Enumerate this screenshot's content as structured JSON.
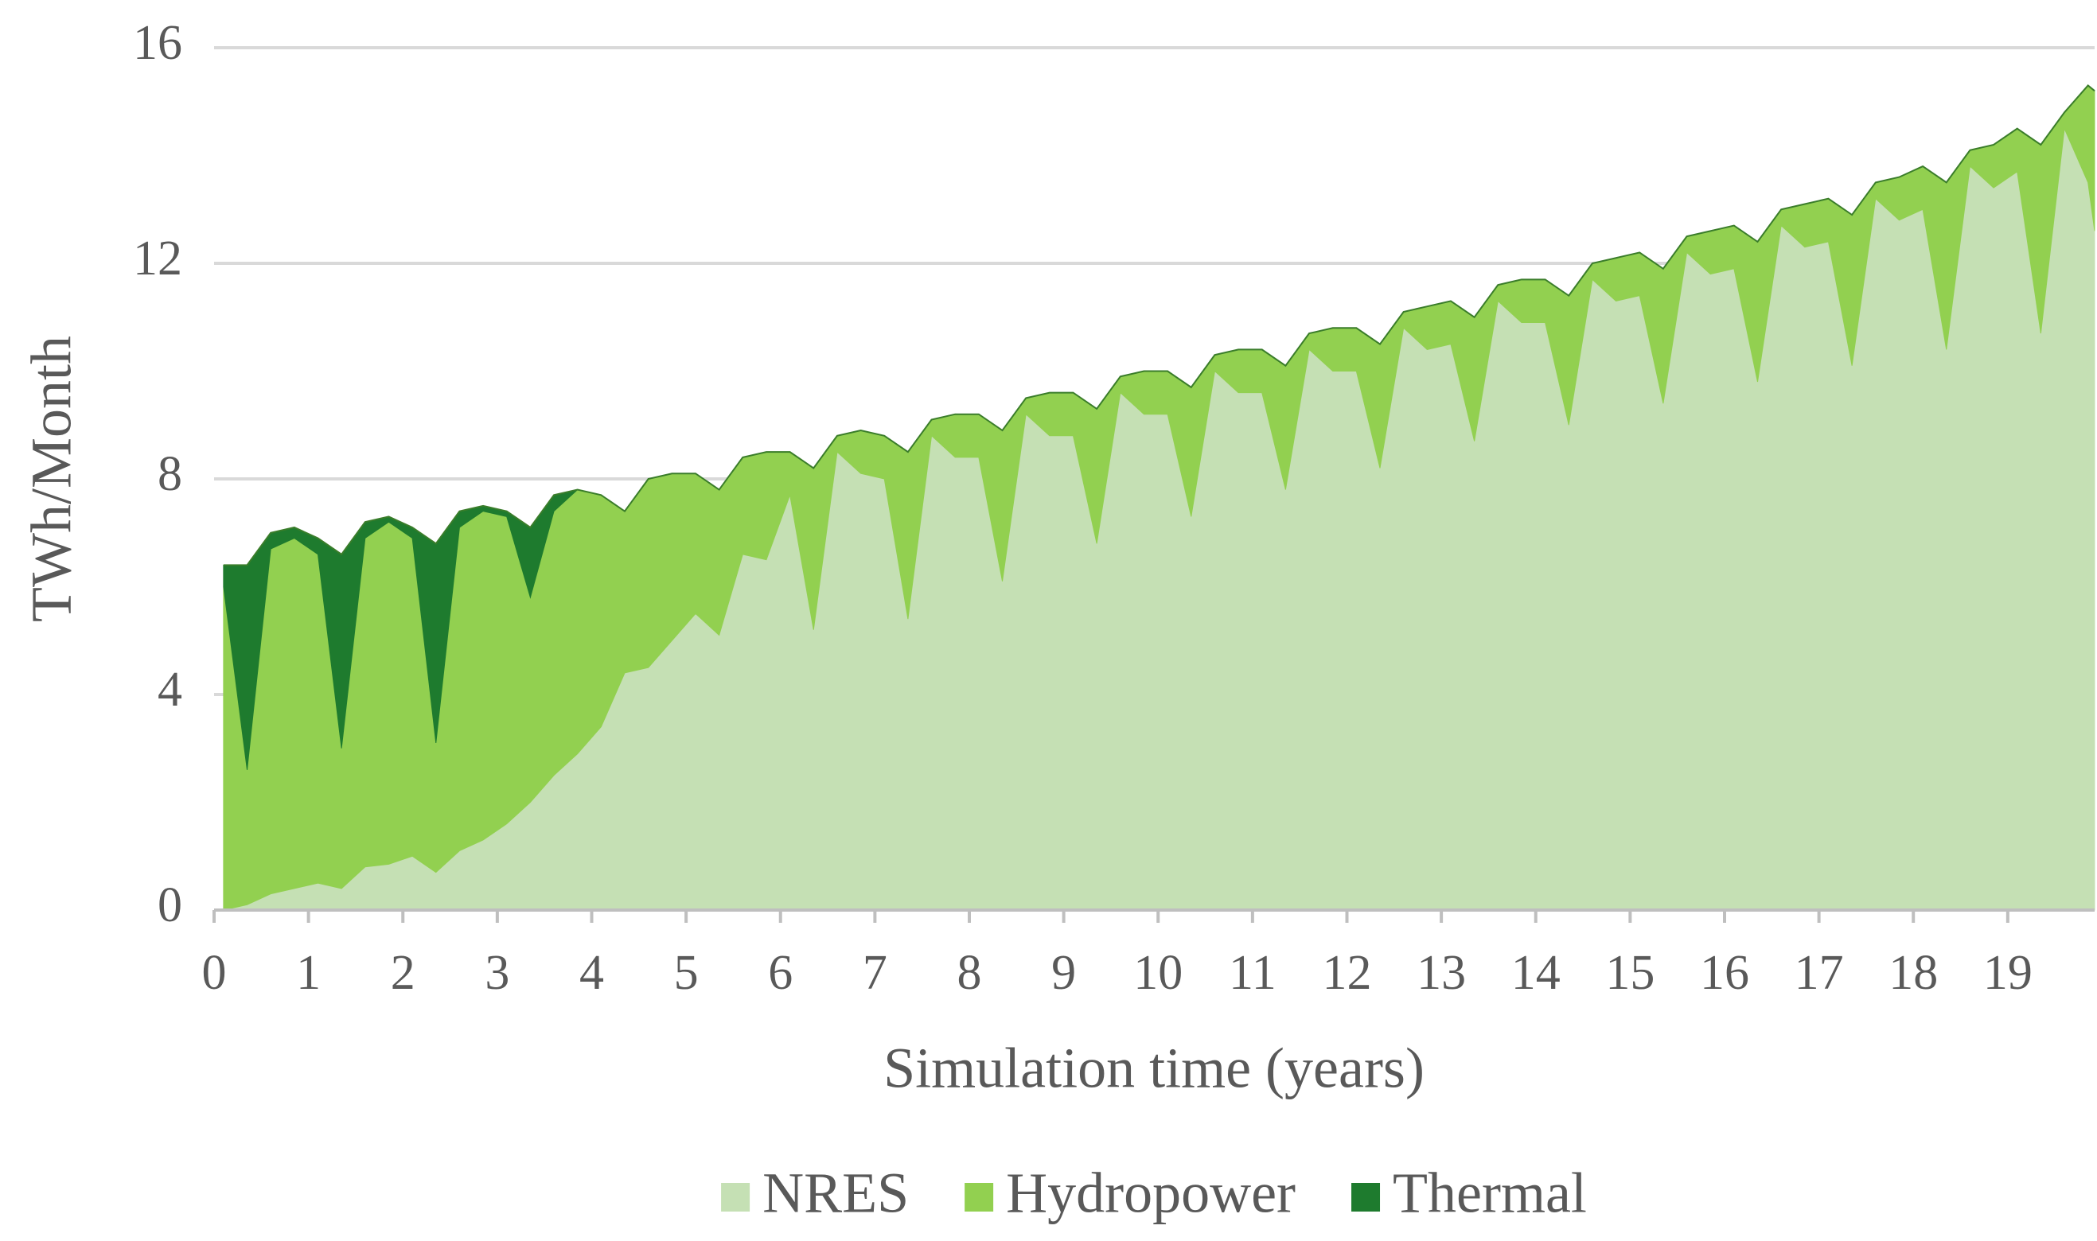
{
  "chart_data": {
    "type": "stacked-area",
    "x_label": "Simulation time (years)",
    "y_label": "TWh/Month",
    "x": [
      0.1,
      0.35,
      0.6,
      0.85,
      1.1,
      1.35,
      1.6,
      1.85,
      2.1,
      2.35,
      2.6,
      2.85,
      3.1,
      3.35,
      3.6,
      3.85,
      4.1,
      4.35,
      4.6,
      4.85,
      5.1,
      5.35,
      5.6,
      5.85,
      6.1,
      6.35,
      6.6,
      6.85,
      7.1,
      7.35,
      7.6,
      7.85,
      8.1,
      8.35,
      8.6,
      8.85,
      9.1,
      9.35,
      9.6,
      9.85,
      10.1,
      10.35,
      10.6,
      10.85,
      11.1,
      11.35,
      11.6,
      11.85,
      12.1,
      12.35,
      12.6,
      12.85,
      13.1,
      13.35,
      13.6,
      13.85,
      14.1,
      14.35,
      14.6,
      14.85,
      15.1,
      15.35,
      15.6,
      15.85,
      16.1,
      16.35,
      16.6,
      16.85,
      17.1,
      17.35,
      17.6,
      17.85,
      18.1,
      18.35,
      18.6,
      18.85,
      19.1,
      19.35,
      19.6,
      19.85,
      19.92
    ],
    "series": [
      {
        "name": "NRES",
        "color": "#c5e0b4",
        "values": [
          0,
          0.1,
          0.3,
          0.4,
          0.5,
          0.4,
          0.8,
          0.85,
          1.0,
          0.7,
          1.1,
          1.3,
          1.6,
          2.0,
          2.5,
          2.9,
          3.4,
          4.4,
          4.5,
          5.0,
          5.5,
          5.1,
          6.6,
          6.5,
          7.7,
          5.2,
          8.5,
          8.1,
          8.0,
          5.4,
          8.8,
          8.4,
          8.4,
          6.1,
          9.2,
          8.8,
          8.8,
          6.8,
          9.6,
          9.2,
          9.2,
          7.3,
          10.0,
          9.6,
          9.6,
          7.8,
          10.4,
          10.0,
          10.0,
          8.2,
          10.8,
          10.4,
          10.5,
          8.7,
          11.3,
          10.9,
          10.9,
          9.0,
          11.7,
          11.3,
          11.4,
          9.4,
          12.2,
          11.8,
          11.9,
          9.8,
          12.7,
          12.3,
          12.4,
          10.1,
          13.2,
          12.8,
          13.0,
          10.4,
          13.8,
          13.4,
          13.7,
          10.7,
          14.5,
          13.5,
          12.6
        ]
      },
      {
        "name": "Hydropower",
        "color": "#92d050",
        "values": [
          6.0,
          2.5,
          6.4,
          6.5,
          6.1,
          2.6,
          6.1,
          6.35,
          5.9,
          2.4,
          6.0,
          6.1,
          5.7,
          3.8,
          4.9,
          4.9,
          4.3,
          3.0,
          3.5,
          3.1,
          2.6,
          2.7,
          1.8,
          2.0,
          0.8,
          3.0,
          0.3,
          0.8,
          0.8,
          3.1,
          0.3,
          0.8,
          0.8,
          2.8,
          0.3,
          0.8,
          0.8,
          2.5,
          0.3,
          0.8,
          0.8,
          2.4,
          0.3,
          0.8,
          0.8,
          2.3,
          0.3,
          0.8,
          0.8,
          2.3,
          0.3,
          0.8,
          0.8,
          2.3,
          0.3,
          0.8,
          0.8,
          2.4,
          0.3,
          0.8,
          0.8,
          2.5,
          0.3,
          0.8,
          0.8,
          2.6,
          0.3,
          0.8,
          0.8,
          2.8,
          0.3,
          0.8,
          0.8,
          3.1,
          0.3,
          0.8,
          0.8,
          3.5,
          0.3,
          1.8,
          2.6
        ]
      },
      {
        "name": "Thermal",
        "color": "#1e7b2e",
        "values": [
          0.4,
          3.8,
          0.3,
          0.2,
          0.3,
          3.6,
          0.3,
          0.1,
          0.2,
          3.7,
          0.3,
          0.1,
          0.1,
          1.3,
          0.3,
          0,
          0,
          0,
          0,
          0,
          0,
          0,
          0,
          0,
          0,
          0,
          0,
          0,
          0,
          0,
          0,
          0,
          0,
          0,
          0,
          0,
          0,
          0,
          0,
          0,
          0,
          0,
          0,
          0,
          0,
          0,
          0,
          0,
          0,
          0,
          0,
          0,
          0,
          0,
          0,
          0,
          0,
          0,
          0,
          0,
          0,
          0,
          0,
          0,
          0,
          0,
          0,
          0,
          0,
          0,
          0,
          0,
          0,
          0,
          0,
          0,
          0,
          0,
          0,
          0,
          0
        ]
      }
    ],
    "xlim": [
      0,
      19.92
    ],
    "ylim": [
      0,
      16
    ],
    "xticks": [
      0,
      1,
      2,
      3,
      4,
      5,
      6,
      7,
      8,
      9,
      10,
      11,
      12,
      13,
      14,
      15,
      16,
      17,
      18,
      19
    ],
    "yticks": [
      0,
      4,
      8,
      12,
      16
    ],
    "grid": true,
    "legend": "bottom"
  }
}
